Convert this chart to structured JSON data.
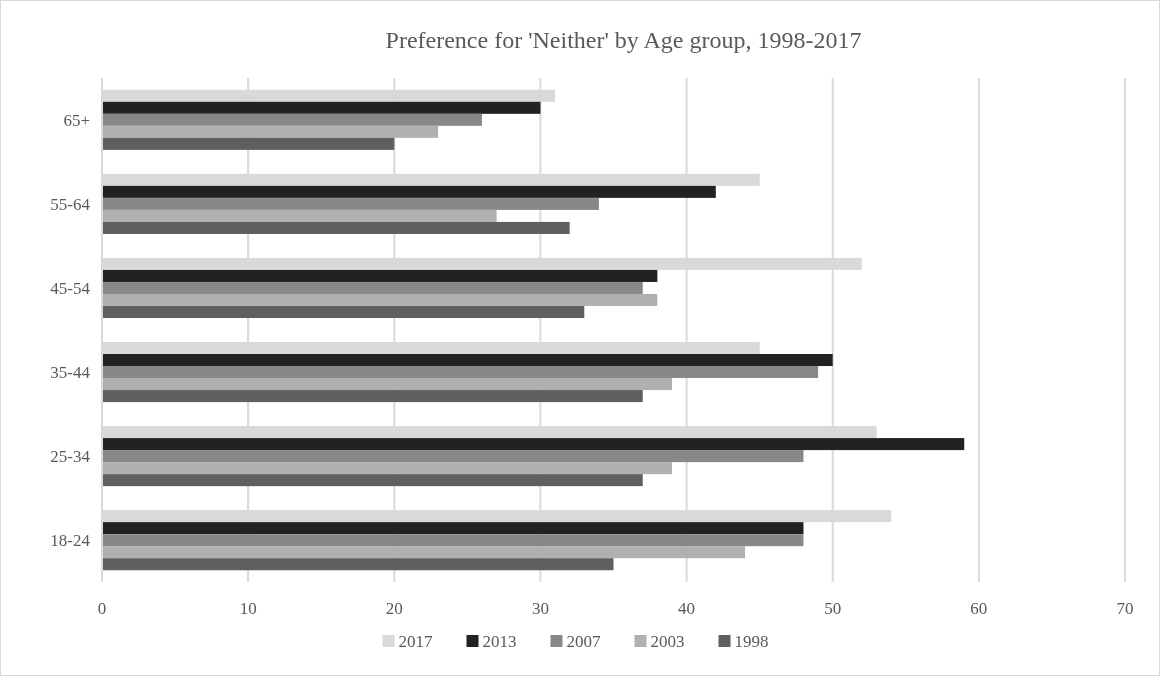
{
  "chart_data": {
    "type": "bar",
    "orientation": "horizontal",
    "title": "Preference for 'Neither' by Age group, 1998-2017",
    "categories": [
      "65+",
      "55-64",
      "45-54",
      "35-44",
      "25-34",
      "18-24"
    ],
    "series": [
      {
        "name": "2017",
        "color": "#d9d9d9",
        "values": [
          31,
          45,
          52,
          45,
          53,
          54
        ]
      },
      {
        "name": "2013",
        "color": "#222222",
        "values": [
          30,
          42,
          38,
          50,
          59,
          48
        ]
      },
      {
        "name": "2007",
        "color": "#888888",
        "values": [
          26,
          34,
          37,
          49,
          48,
          48
        ]
      },
      {
        "name": "2003",
        "color": "#b0b0b0",
        "values": [
          23,
          27,
          38,
          39,
          39,
          44
        ]
      },
      {
        "name": "1998",
        "color": "#5f5f5f",
        "values": [
          20,
          32,
          33,
          37,
          37,
          35
        ]
      }
    ],
    "xlim": [
      0,
      70
    ],
    "xticks": [
      0,
      10,
      20,
      30,
      40,
      50,
      60,
      70
    ],
    "grid": "x",
    "legend": "bottom"
  }
}
